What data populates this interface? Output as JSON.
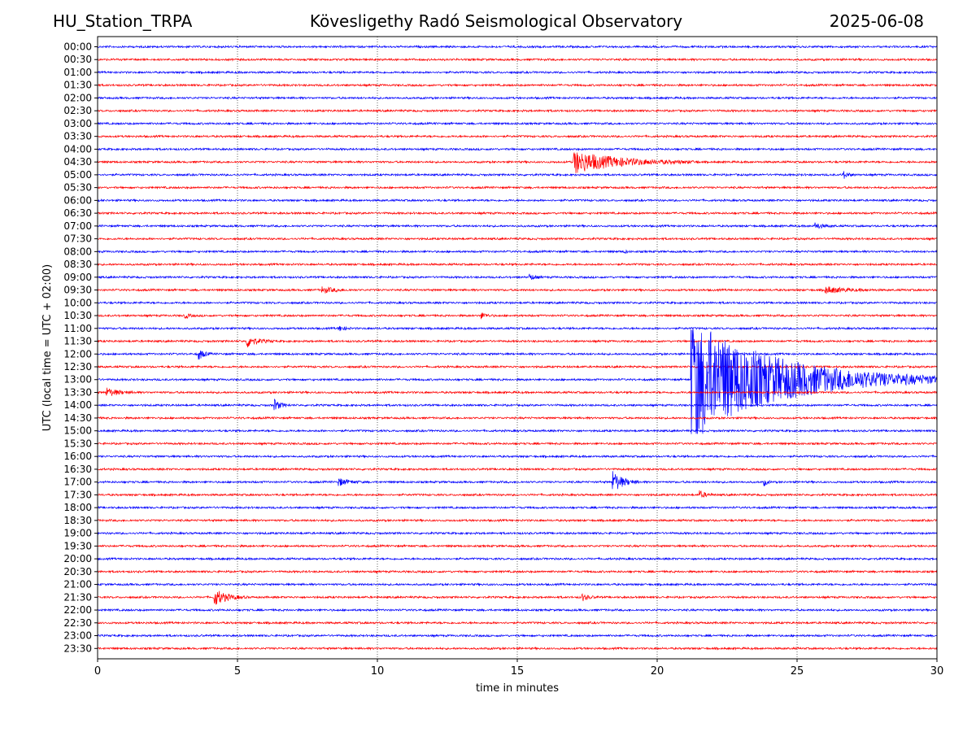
{
  "header": {
    "station": "HU_Station_TRPA",
    "observatory": "Kövesligethy Radó Seismological Observatory",
    "date": "2025-06-08"
  },
  "chart_data": {
    "type": "line",
    "title": "Kövesligethy Radó Seismological Observatory",
    "xlabel": "time in minutes",
    "ylabel": "UTC (local time = UTC + 02:00)",
    "xlim": [
      0,
      30
    ],
    "x_ticks": [
      "0",
      "5",
      "10",
      "15",
      "20",
      "25",
      "30"
    ],
    "vertical_gridlines_at_minutes": [
      5,
      10,
      15,
      20,
      25
    ],
    "grid": "vertical dotted",
    "trace_colors": [
      "#0000ff",
      "#ff0000"
    ],
    "rows": [
      "00:00",
      "00:30",
      "01:00",
      "01:30",
      "02:00",
      "02:30",
      "03:00",
      "03:30",
      "04:00",
      "04:30",
      "05:00",
      "05:30",
      "06:00",
      "06:30",
      "07:00",
      "07:30",
      "08:00",
      "08:30",
      "09:00",
      "09:30",
      "10:00",
      "10:30",
      "11:00",
      "11:30",
      "12:00",
      "12:30",
      "13:00",
      "13:30",
      "14:00",
      "14:30",
      "15:00",
      "15:30",
      "16:00",
      "16:30",
      "17:00",
      "17:30",
      "18:00",
      "18:30",
      "19:00",
      "19:30",
      "20:00",
      "20:30",
      "21:00",
      "21:30",
      "22:00",
      "22:30",
      "23:00",
      "23:30"
    ],
    "events": [
      {
        "row": "04:30",
        "minute": 17.0,
        "relative_amplitude": 1.0,
        "duration_min": 4.5
      },
      {
        "row": "05:00",
        "minute": 26.6,
        "relative_amplitude": 0.45,
        "duration_min": 0.5
      },
      {
        "row": "07:00",
        "minute": 25.6,
        "relative_amplitude": 0.3,
        "duration_min": 0.8
      },
      {
        "row": "08:00",
        "minute": 18.8,
        "relative_amplitude": 0.3,
        "duration_min": 0.2
      },
      {
        "row": "09:00",
        "minute": 15.4,
        "relative_amplitude": 0.35,
        "duration_min": 0.5
      },
      {
        "row": "09:30",
        "minute": 8.0,
        "relative_amplitude": 0.3,
        "duration_min": 1.2
      },
      {
        "row": "09:30",
        "minute": 26.0,
        "relative_amplitude": 0.3,
        "duration_min": 2.0
      },
      {
        "row": "10:30",
        "minute": 3.1,
        "relative_amplitude": 0.3,
        "duration_min": 0.4
      },
      {
        "row": "10:30",
        "minute": 13.7,
        "relative_amplitude": 0.3,
        "duration_min": 0.5
      },
      {
        "row": "11:00",
        "minute": 8.6,
        "relative_amplitude": 0.3,
        "duration_min": 0.5
      },
      {
        "row": "11:30",
        "minute": 5.3,
        "relative_amplitude": 0.6,
        "duration_min": 1.0
      },
      {
        "row": "12:00",
        "minute": 3.6,
        "relative_amplitude": 0.55,
        "duration_min": 0.5
      },
      {
        "row": "13:00",
        "minute": 21.2,
        "relative_amplitude": 5.5,
        "duration_min": 8.8
      },
      {
        "row": "13:30",
        "minute": 0.3,
        "relative_amplitude": 0.4,
        "duration_min": 1.2
      },
      {
        "row": "14:00",
        "minute": 6.3,
        "relative_amplitude": 0.55,
        "duration_min": 0.6
      },
      {
        "row": "17:00",
        "minute": 8.6,
        "relative_amplitude": 0.35,
        "duration_min": 1.0
      },
      {
        "row": "17:00",
        "minute": 18.4,
        "relative_amplitude": 1.0,
        "duration_min": 1.0
      },
      {
        "row": "17:00",
        "minute": 23.8,
        "relative_amplitude": 0.4,
        "duration_min": 0.3
      },
      {
        "row": "17:30",
        "minute": 21.5,
        "relative_amplitude": 0.35,
        "duration_min": 0.6
      },
      {
        "row": "21:30",
        "minute": 4.15,
        "relative_amplitude": 0.8,
        "duration_min": 1.2
      },
      {
        "row": "21:30",
        "minute": 17.3,
        "relative_amplitude": 0.35,
        "duration_min": 0.6
      }
    ]
  }
}
